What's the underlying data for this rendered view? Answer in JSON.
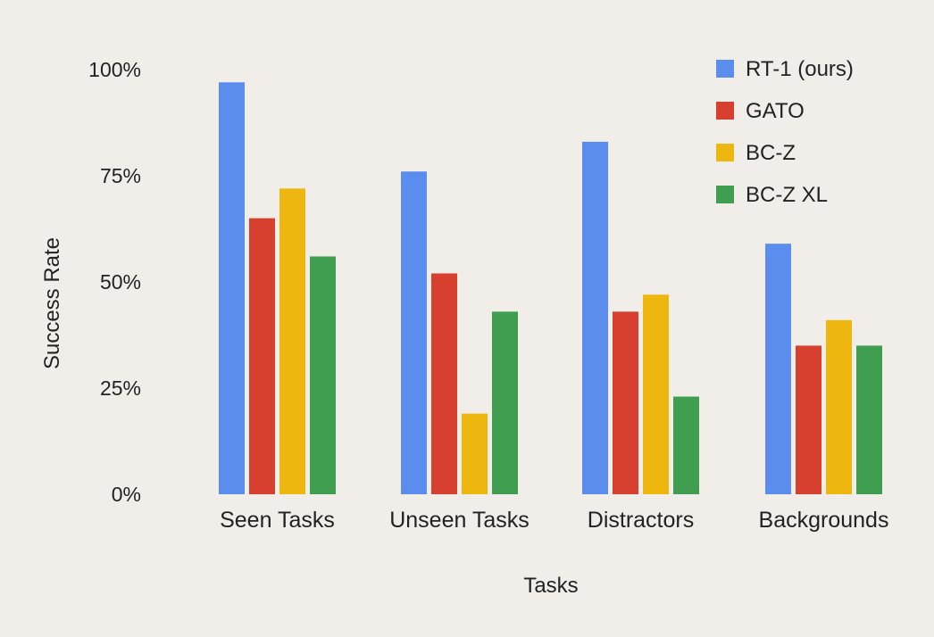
{
  "chart_data": {
    "type": "bar",
    "title": "",
    "xlabel": "Tasks",
    "ylabel": "Success Rate",
    "ylim": [
      0,
      100
    ],
    "yticks": [
      0,
      25,
      50,
      75,
      100
    ],
    "ytick_labels": [
      "0%",
      "25%",
      "50%",
      "75%",
      "100%"
    ],
    "categories": [
      "Seen Tasks",
      "Unseen Tasks",
      "Distractors",
      "Backgrounds"
    ],
    "series": [
      {
        "name": "RT-1 (ours)",
        "color": "#5b8def",
        "values": [
          97,
          76,
          83,
          59
        ]
      },
      {
        "name": "GATO",
        "color": "#d7402e",
        "values": [
          65,
          52,
          43,
          35
        ]
      },
      {
        "name": "BC-Z",
        "color": "#eeb70f",
        "values": [
          72,
          19,
          47,
          41
        ]
      },
      {
        "name": "BC-Z XL",
        "color": "#3f9e4f",
        "values": [
          56,
          43,
          23,
          35
        ]
      }
    ],
    "grid": false,
    "legend_position": "top-right"
  }
}
